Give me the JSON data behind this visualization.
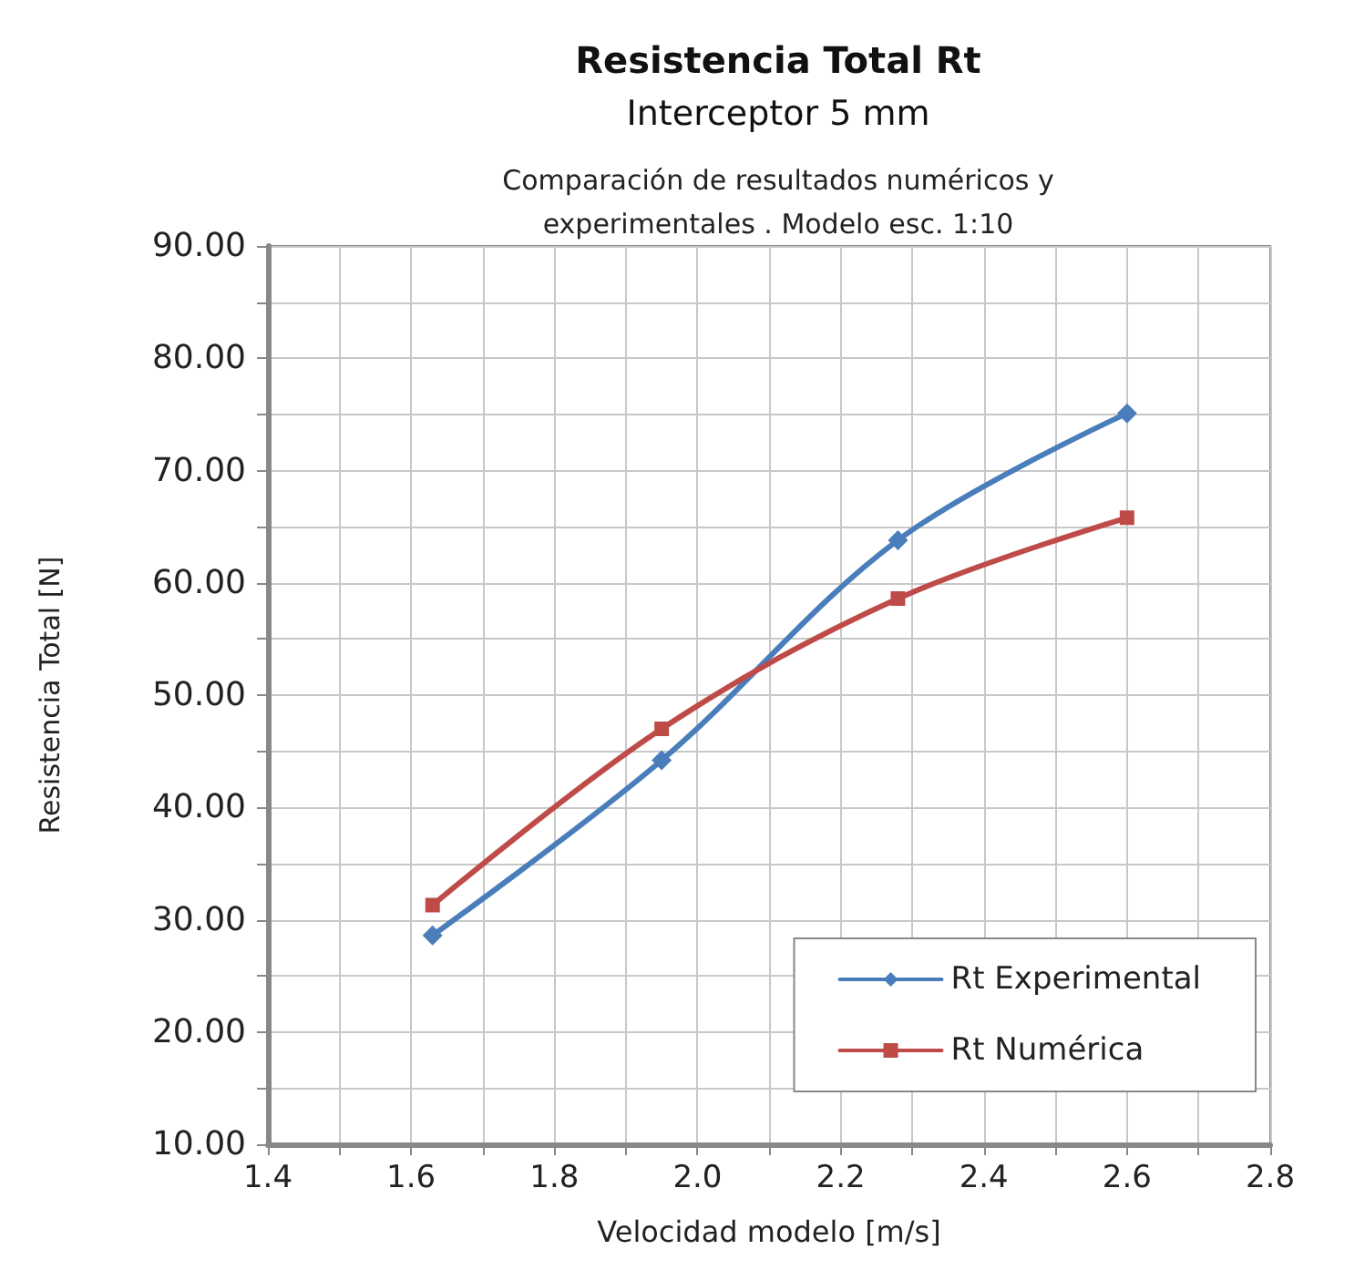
{
  "chart_data": {
    "type": "line",
    "title": "Resistencia Total Rt",
    "subtitle": "Interceptor 5 mm\nComparación de resultados numéricos y\nexperimentales . Modelo esc. 1:10",
    "xlabel": "Velocidad modelo [m/s]",
    "ylabel": "Resistencia Total [N]",
    "series": [
      {
        "name": "Rt Experimental",
        "color": "#4a7ebb",
        "marker": "diamond",
        "x": [
          1.63,
          1.95,
          2.28,
          2.6
        ],
        "values": [
          28.6,
          44.2,
          63.8,
          75.1
        ]
      },
      {
        "name": "Rt Numérica",
        "color": "#be4b48",
        "marker": "square",
        "x": [
          1.63,
          1.95,
          2.28,
          2.6
        ],
        "values": [
          31.3,
          47.0,
          58.6,
          65.8
        ]
      }
    ],
    "xlim": [
      1.4,
      2.8
    ],
    "xticks": [
      1.4,
      {
        "value": 1.5,
        "label": null
      },
      1.6,
      {
        "value": 1.7,
        "label": null
      },
      1.8,
      {
        "value": 1.9,
        "label": null
      },
      {
        "value": 2.0,
        "label": "2.0"
      },
      {
        "value": 2.1,
        "label": null
      },
      2.2,
      {
        "value": 2.3,
        "label": null
      },
      2.4,
      {
        "value": 2.5,
        "label": null
      },
      2.6,
      {
        "value": 2.7,
        "label": null
      },
      2.8
    ],
    "ylim": [
      10,
      90
    ],
    "yticks": [
      {
        "value": 10,
        "label": "10.00"
      },
      {
        "value": 15,
        "label": null
      },
      {
        "value": 20,
        "label": "20.00"
      },
      {
        "value": 25,
        "label": null
      },
      {
        "value": 30,
        "label": "30.00"
      },
      {
        "value": 35,
        "label": null
      },
      {
        "value": 40,
        "label": "40.00"
      },
      {
        "value": 45,
        "label": null
      },
      {
        "value": 50,
        "label": "50.00"
      },
      {
        "value": 55,
        "label": null
      },
      {
        "value": 60,
        "label": "60.00"
      },
      {
        "value": 65,
        "label": null
      },
      {
        "value": 70,
        "label": "70.00"
      },
      {
        "value": 75,
        "label": null
      },
      {
        "value": 80,
        "label": "80.00"
      },
      {
        "value": 85,
        "label": null
      },
      {
        "value": 90,
        "label": "90.00"
      }
    ],
    "grid": true,
    "legend": "bottom right",
    "line_style": "solid"
  }
}
